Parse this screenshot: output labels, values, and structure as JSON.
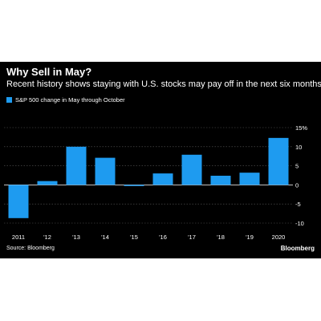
{
  "header": {
    "title": "Why Sell in May?",
    "subtitle": "Recent history shows staying with U.S. stocks may pay off in the next six months"
  },
  "footer": {
    "source": "Source: Bloomberg",
    "brand": "Bloomberg"
  },
  "colors": {
    "background": "#000000",
    "bar": "#1e9bf0",
    "text": "#ffffff",
    "grid": "#5a5a5a"
  },
  "chart_data": {
    "type": "bar",
    "title": "Why Sell in May?",
    "subtitle": "Recent history shows staying with U.S. stocks may pay off in the next six months",
    "categories": [
      "2011",
      "'12",
      "'13",
      "'14",
      "'15",
      "'16",
      "'17",
      "'18",
      "'19",
      "2020"
    ],
    "series": [
      {
        "name": "S&P 500 change in May through October",
        "values": [
          -8.7,
          1.0,
          10.0,
          7.1,
          -0.3,
          3.0,
          7.9,
          2.4,
          3.2,
          12.3
        ]
      }
    ],
    "y_ticks": [
      15,
      10,
      5,
      0,
      -5,
      -10
    ],
    "y_tick_labels": [
      "15%",
      "10",
      "5",
      "0",
      "-5",
      "-10"
    ],
    "ylim": [
      -10,
      15
    ],
    "y_axis_position": "right",
    "grid": true,
    "legend": "top-left"
  }
}
